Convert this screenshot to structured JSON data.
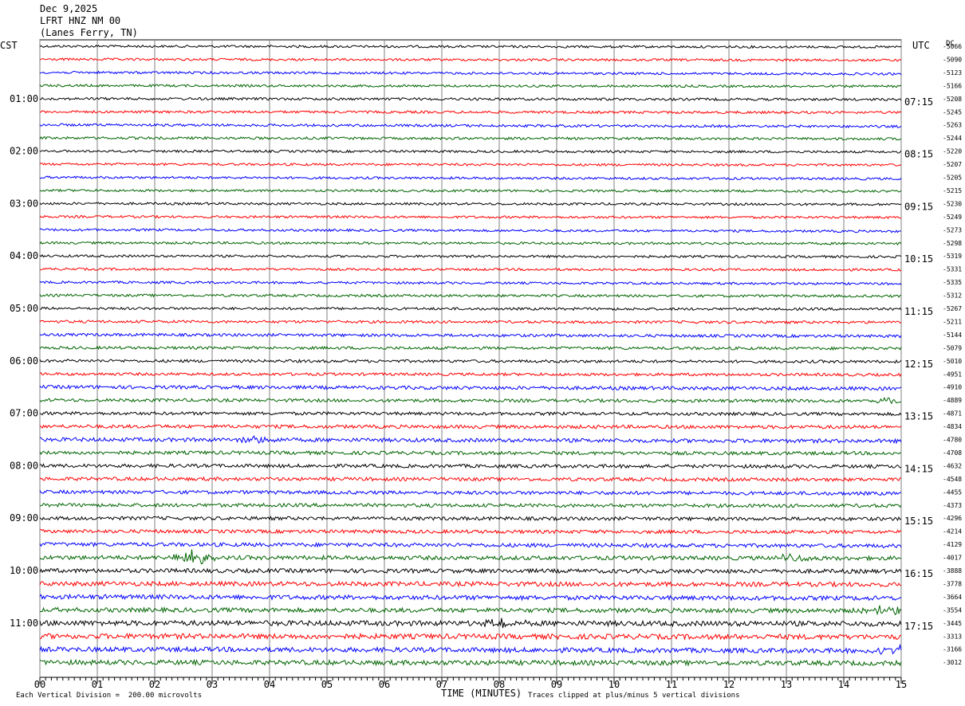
{
  "header": {
    "date": "Dec 9,2025",
    "station": "LFRT HNZ NM 00",
    "location": "(Lanes Ferry, TN)"
  },
  "axis": {
    "left_label": "CST",
    "right_label": "UTC",
    "dc_label": "DC",
    "xlabel": "TIME (MINUTES)"
  },
  "footer": {
    "scale_note": "Each Vertical Division =  200.00 microvolts",
    "clip_note": "Traces clipped at plus/minus 5 vertical divisions"
  },
  "chart_data": {
    "type": "line",
    "title": "LFRT HNZ NM 00",
    "xlabel": "TIME (MINUTES)",
    "x_range": [
      0,
      15
    ],
    "x_ticks": [
      "00",
      "01",
      "02",
      "03",
      "04",
      "05",
      "06",
      "07",
      "08",
      "09",
      "10",
      "11",
      "12",
      "13",
      "14",
      "15"
    ],
    "left_time_labels": [
      "01:00",
      "02:00",
      "03:00",
      "04:00",
      "05:00",
      "06:00",
      "07:00",
      "08:00",
      "09:00",
      "10:00",
      "11:00"
    ],
    "right_time_labels": [
      "07:15",
      "08:15",
      "09:15",
      "10:15",
      "11:15",
      "12:15",
      "13:15",
      "14:15",
      "15:15",
      "16:15",
      "17:15"
    ],
    "trace_colors": [
      "#000000",
      "#ff0000",
      "#0000ff",
      "#006400"
    ],
    "dc_offsets": [
      -5066,
      -5090,
      -5123,
      -5166,
      -5208,
      -5245,
      -5263,
      -5244,
      -5220,
      -5207,
      -5205,
      -5215,
      -5230,
      -5249,
      -5273,
      -5298,
      -5319,
      -5331,
      -5335,
      -5312,
      -5267,
      -5211,
      -5144,
      -5079,
      -5010,
      -4951,
      -4910,
      -4889,
      -4871,
      -4834,
      -4780,
      -4708,
      -4632,
      -4548,
      -4455,
      -4373,
      -4296,
      -4214,
      -4129,
      -4017,
      -3888,
      -3778,
      -3664,
      -3554,
      -3445,
      -3313,
      -3166,
      -3012
    ],
    "noise_levels": [
      1.5,
      1.5,
      1.5,
      1.5,
      1.6,
      1.6,
      1.6,
      1.6,
      1.5,
      1.5,
      1.5,
      1.5,
      1.5,
      1.5,
      1.5,
      1.5,
      1.5,
      1.5,
      1.5,
      1.6,
      1.6,
      1.7,
      1.8,
      1.8,
      1.8,
      1.8,
      2.2,
      2.0,
      2.0,
      2.2,
      2.4,
      2.2,
      2.2,
      2.2,
      2.2,
      2.2,
      2.2,
      2.2,
      2.4,
      2.6,
      2.6,
      2.8,
      2.8,
      2.8,
      3.2,
      3.2,
      3.0,
      3.0
    ],
    "events": [
      {
        "trace": 39,
        "minute": 2.65,
        "amplitude": 9
      },
      {
        "trace": 39,
        "minute": 13.1,
        "amplitude": 5
      },
      {
        "trace": 44,
        "minute": 8.05,
        "amplitude": 6
      },
      {
        "trace": 43,
        "minute": 14.7,
        "amplitude": 5
      },
      {
        "trace": 46,
        "minute": 14.85,
        "amplitude": 6
      },
      {
        "trace": 27,
        "minute": 14.8,
        "amplitude": 4
      },
      {
        "trace": 30,
        "minute": 3.8,
        "amplitude": 4
      }
    ]
  }
}
